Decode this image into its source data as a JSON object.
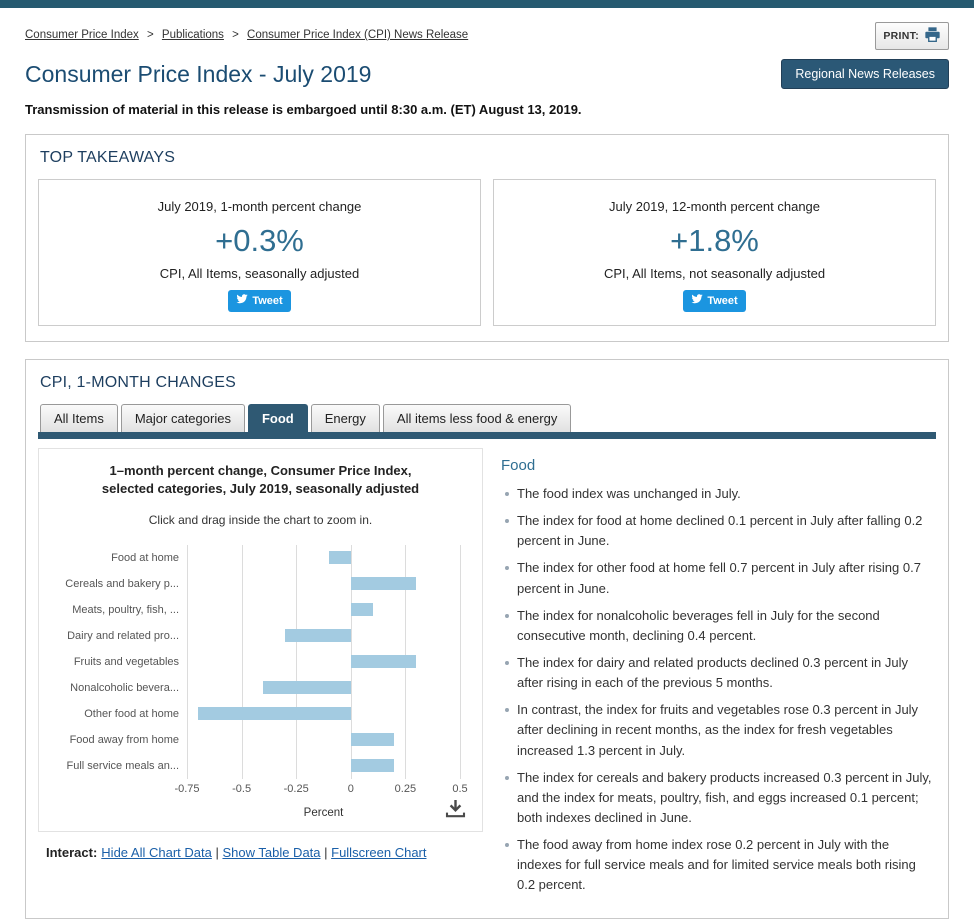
{
  "colors": {
    "accent_navy": "#2f5973",
    "top_bar": "#265a70",
    "title_blue": "#1b4c72",
    "value_blue": "#2f6e91",
    "tweet_blue": "#1b95e0",
    "bar_blue": "#a3cbe1",
    "link_blue": "#1a5fa8"
  },
  "breadcrumb": {
    "separator": ">",
    "items": [
      {
        "label": "Consumer Price Index"
      },
      {
        "label": "Publications"
      },
      {
        "label": "Consumer Price Index (CPI) News Release"
      }
    ]
  },
  "print_button": {
    "label": "PRINT:"
  },
  "header": {
    "title": "Consumer Price Index - July 2019",
    "regional_button": "Regional News Releases",
    "embargo": "Transmission of material in this release is embargoed until 8:30 a.m. (ET) August 13, 2019."
  },
  "top_takeaways": {
    "title": "TOP TAKEAWAYS",
    "cards": [
      {
        "heading": "July 2019, 1-month percent change",
        "value": "+0.3%",
        "caption": "CPI, All Items, seasonally adjusted",
        "tweet_label": "Tweet"
      },
      {
        "heading": "July 2019, 12-month percent change",
        "value": "+1.8%",
        "caption": "CPI, All Items, not seasonally adjusted",
        "tweet_label": "Tweet"
      }
    ]
  },
  "cpi_section": {
    "title": "CPI, 1-MONTH CHANGES",
    "tabs": [
      {
        "label": "All Items",
        "active": false
      },
      {
        "label": "Major categories",
        "active": false
      },
      {
        "label": "Food",
        "active": true
      },
      {
        "label": "Energy",
        "active": false
      },
      {
        "label": "All items less food & energy",
        "active": false
      }
    ],
    "chart_header": {
      "title_line1": "1–month percent change, Consumer Price Index,",
      "title_line2": "selected categories, July 2019, seasonally adjusted",
      "hint": "Click and drag inside the chart to zoom in."
    },
    "interact": {
      "label": "Interact:",
      "separator": "|",
      "links": [
        "Hide All Chart Data",
        "Show Table Data",
        "Fullscreen Chart"
      ]
    },
    "food_panel": {
      "title": "Food",
      "bullets": [
        "The food index was unchanged in July.",
        "The index for food at home declined 0.1 percent in July after falling 0.2 percent in June.",
        "The index for other food at home fell 0.7 percent in July after rising 0.7 percent in June.",
        "The index for nonalcoholic beverages fell in July for the second consecutive month, declining 0.4 percent.",
        "The index for dairy and related products declined 0.3 percent in July after rising in each of the previous 5 months.",
        "In contrast, the index for fruits and vegetables rose 0.3 percent in July after declining in recent months, as the index for fresh vegetables increased 1.3 percent in July.",
        "The index for cereals and bakery products increased 0.3 percent in July, and the index for meats, poultry, fish, and eggs increased 0.1 percent; both indexes declined in June.",
        "The food away from home index rose 0.2 percent in July with the indexes for full service meals and for limited service meals both rising 0.2 percent."
      ]
    }
  },
  "chart_data": {
    "type": "bar",
    "orientation": "horizontal",
    "title": "1–month percent change, Consumer Price Index, selected categories, July 2019, seasonally adjusted",
    "categories": [
      "Food at home",
      "Cereals and bakery p...",
      "Meats, poultry, fish, ...",
      "Dairy and related pro...",
      "Fruits and vegetables",
      "Nonalcoholic bevera...",
      "Other food at home",
      "Food away from home",
      "Full service meals an..."
    ],
    "values": [
      -0.1,
      0.3,
      0.1,
      -0.3,
      0.3,
      -0.4,
      -0.7,
      0.2,
      0.2
    ],
    "xlabel": "Percent",
    "xlim": [
      -0.75,
      0.5
    ],
    "xticks": [
      -0.75,
      -0.5,
      -0.25,
      0,
      0.25,
      0.5
    ],
    "grid": true,
    "bar_color": "#a3cbe1",
    "legend": false
  }
}
